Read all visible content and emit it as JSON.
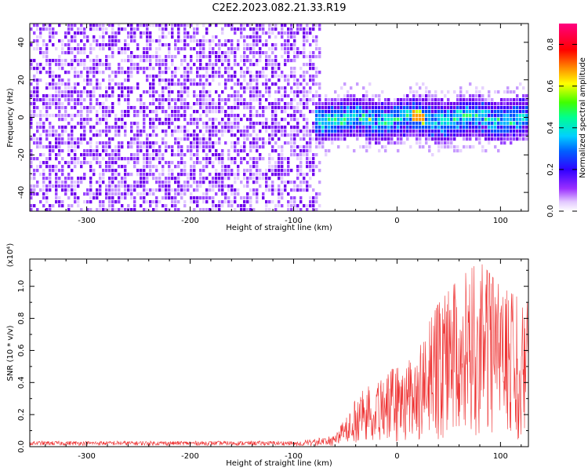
{
  "title": "C2E2.2023.082.21.33.R19",
  "chart_data": [
    {
      "type": "heatmap",
      "title": "C2E2.2023.082.21.33.R19",
      "xlabel": "Height of straight line (km)",
      "ylabel": "Frequency (Hz)",
      "xlim": [
        -355,
        127
      ],
      "ylim": [
        -50,
        50
      ],
      "x_ticks": [
        -300,
        -200,
        -100,
        0,
        100
      ],
      "x_tick_labels": [
        "-300",
        "-200",
        "-100",
        "0",
        "100"
      ],
      "y_ticks": [
        -40,
        -20,
        0,
        20,
        40
      ],
      "y_tick_labels": [
        "-40",
        "-20",
        "0",
        "20",
        "40"
      ],
      "colorbar": {
        "label": "Normalized spectral amplitude",
        "range": [
          0,
          0.9
        ],
        "ticks": [
          0.0,
          0.2,
          0.4,
          0.6,
          0.8
        ],
        "tick_labels": [
          "0.0",
          "0.2",
          "0.4",
          "0.6",
          "0.8"
        ],
        "colormap": [
          "#ffffff",
          "#d4b3ff",
          "#7d00f0",
          "#0000ff",
          "#00e6ff",
          "#00ff66",
          "#ffff00",
          "#ff8000",
          "#ff0000",
          "#ff00a0"
        ]
      },
      "regions": [
        {
          "x_range": [
            -355,
            -80
          ],
          "description": "broadband noise across all frequencies, amplitude ~0.05-0.15"
        },
        {
          "x_range": [
            -88,
            127
          ],
          "center_hz": 0,
          "half_width_hz": 10,
          "peak_amplitude": 0.6,
          "peak_x_km": 18
        }
      ],
      "grid": false
    },
    {
      "type": "line",
      "xlabel": "Height of straight line (km)",
      "ylabel": "SNR (10 * v/v)",
      "y_multiplier": "(x10⁴)",
      "xlim": [
        -355,
        127
      ],
      "ylim": [
        0,
        1.17
      ],
      "x_ticks": [
        -300,
        -200,
        -100,
        0,
        100
      ],
      "x_tick_labels": [
        "-300",
        "-200",
        "-100",
        "0",
        "100"
      ],
      "y_ticks": [
        0.0,
        0.2,
        0.4,
        0.6,
        0.8,
        1.0
      ],
      "y_tick_labels": [
        "0.0",
        "0.2",
        "0.4",
        "0.6",
        "0.8",
        "1.0"
      ],
      "series": [
        {
          "color": "#ee3333",
          "envelope": [
            {
              "x": -355,
              "y": 0.03
            },
            {
              "x": -100,
              "y": 0.03
            },
            {
              "x": -60,
              "y": 0.07
            },
            {
              "x": -40,
              "y": 0.3
            },
            {
              "x": -20,
              "y": 0.45
            },
            {
              "x": 0,
              "y": 0.5
            },
            {
              "x": 20,
              "y": 0.6
            },
            {
              "x": 40,
              "y": 0.85
            },
            {
              "x": 60,
              "y": 1.0
            },
            {
              "x": 80,
              "y": 1.1
            },
            {
              "x": 100,
              "y": 0.95
            },
            {
              "x": 127,
              "y": 0.85
            }
          ]
        }
      ],
      "grid": false
    }
  ]
}
